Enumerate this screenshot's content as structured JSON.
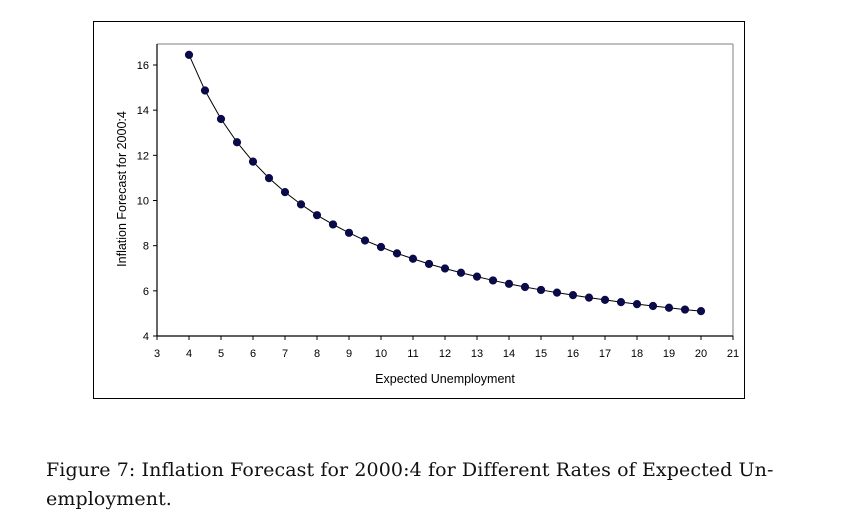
{
  "chart_data": {
    "type": "line",
    "title": "",
    "xlabel": "Expected Unemployment",
    "ylabel": "Inflation Forecast for 2000:4",
    "xlim": [
      3,
      21
    ],
    "ylim": [
      4,
      17
    ],
    "x_ticks": [
      3,
      4,
      5,
      6,
      7,
      8,
      9,
      10,
      11,
      12,
      13,
      14,
      15,
      16,
      17,
      18,
      19,
      20,
      21
    ],
    "y_ticks": [
      4,
      6,
      8,
      10,
      12,
      14,
      16
    ],
    "grid": false,
    "legend": "none",
    "series": [
      {
        "name": "Inflation Forecast",
        "marker": "circle",
        "color": "#0b0b4a",
        "line_color": "#000000",
        "x": [
          4,
          4.5,
          5,
          5.5,
          6,
          6.5,
          7,
          7.5,
          8,
          8.5,
          9,
          9.5,
          10,
          10.5,
          11,
          11.5,
          12,
          12.5,
          13,
          13.5,
          14,
          14.5,
          15,
          15.5,
          16,
          16.5,
          17,
          17.5,
          18,
          18.5,
          19,
          19.5,
          20
        ],
        "y": [
          16.45,
          14.87,
          13.61,
          12.58,
          11.72,
          10.99,
          10.37,
          9.83,
          9.35,
          8.94,
          8.57,
          8.23,
          7.94,
          7.66,
          7.42,
          7.19,
          6.99,
          6.8,
          6.63,
          6.46,
          6.31,
          6.17,
          6.04,
          5.92,
          5.81,
          5.7,
          5.6,
          5.5,
          5.41,
          5.33,
          5.25,
          5.17,
          5.1
        ]
      }
    ]
  },
  "caption": {
    "line1": "Figure 7: Inflation Forecast for 2000:4 for Different Rates of Expected Un-",
    "line2": "employment."
  }
}
